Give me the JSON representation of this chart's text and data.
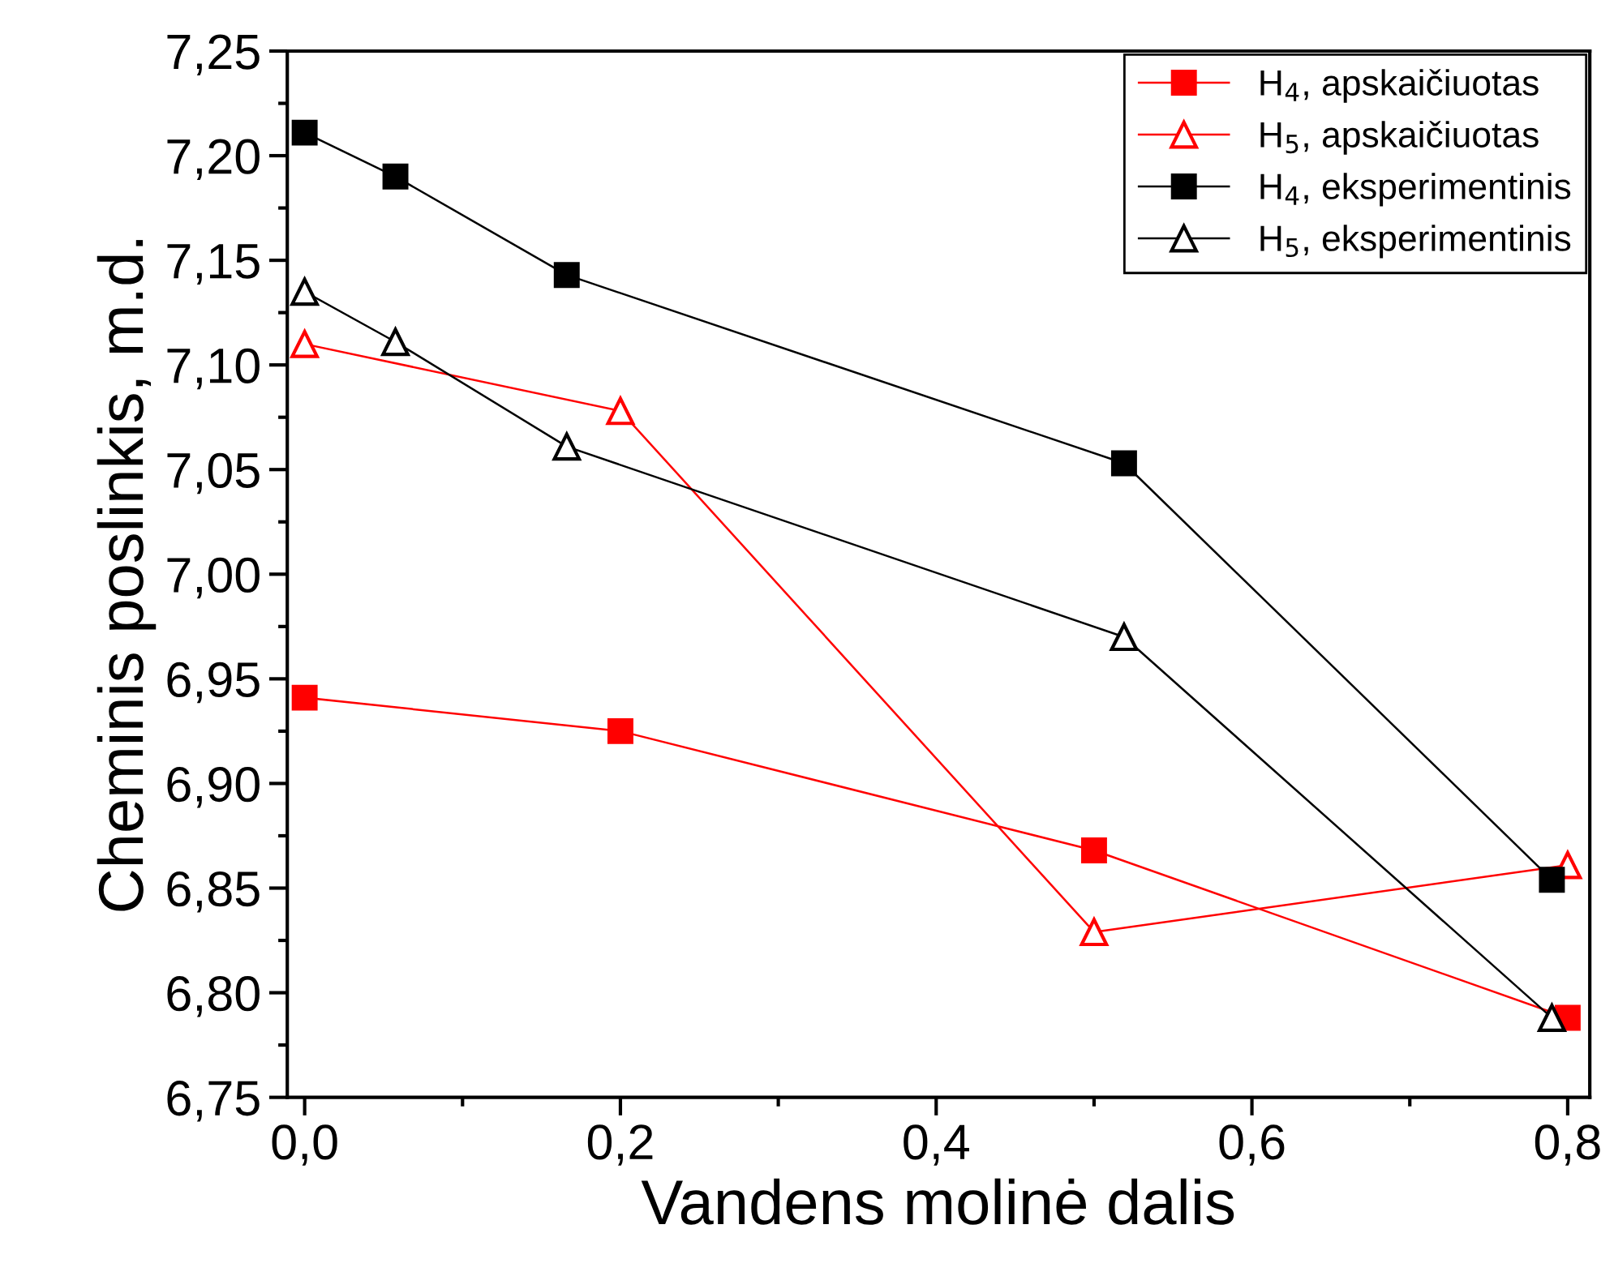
{
  "chart_data": {
    "type": "line",
    "xlabel": "Vandens molinė dalis",
    "ylabel": "Cheminis poslinkis, m.d.",
    "xlim": [
      -0.011,
      0.814
    ],
    "ylim": [
      6.75,
      7.25
    ],
    "xticks": [
      {
        "value": 0,
        "label": "0,0"
      },
      {
        "value": 0.2,
        "label": "0,2"
      },
      {
        "value": 0.4,
        "label": "0,4"
      },
      {
        "value": 0.6,
        "label": "0,6"
      },
      {
        "value": 0.8,
        "label": "0,8"
      }
    ],
    "yticks": [
      {
        "value": 6.75,
        "label": "6,75"
      },
      {
        "value": 6.8,
        "label": "6,80"
      },
      {
        "value": 6.85,
        "label": "6,85"
      },
      {
        "value": 6.9,
        "label": "6,90"
      },
      {
        "value": 6.95,
        "label": "6,95"
      },
      {
        "value": 7.0,
        "label": "7,00"
      },
      {
        "value": 7.05,
        "label": "7,05"
      },
      {
        "value": 7.1,
        "label": "7,10"
      },
      {
        "value": 7.15,
        "label": "7,15"
      },
      {
        "value": 7.2,
        "label": "7,20"
      },
      {
        "value": 7.25,
        "label": "7,25"
      }
    ],
    "grid": false,
    "legend": "top right",
    "line_style": "solid",
    "series": [
      {
        "name": "H$_{4}$, apskaičiuotas",
        "color": "#ff0000",
        "marker": "square",
        "x": [
          0,
          0.2,
          0.5,
          0.8
        ],
        "values": [
          6.941,
          6.925,
          6.868,
          6.788
        ]
      },
      {
        "name": "H$_{5}$, apskaičiuotas",
        "color": "#ff0000",
        "marker": "triangle",
        "x": [
          0,
          0.2,
          0.5,
          0.8
        ],
        "values": [
          7.11,
          7.078,
          6.829,
          6.861
        ]
      },
      {
        "name": "H$_{4}$, eksperimentinis",
        "color": "#000000",
        "marker": "square",
        "x": [
          0,
          0.0575,
          0.166,
          0.519,
          0.79
        ],
        "values": [
          7.211,
          7.19,
          7.143,
          7.053,
          6.854
        ]
      },
      {
        "name": "H$_{5}$, eksperimentinis",
        "color": "#000000",
        "marker": "triangle",
        "x": [
          0,
          0.0575,
          0.166,
          0.519,
          0.79
        ],
        "values": [
          7.135,
          7.111,
          7.061,
          6.97,
          6.788
        ]
      }
    ]
  }
}
